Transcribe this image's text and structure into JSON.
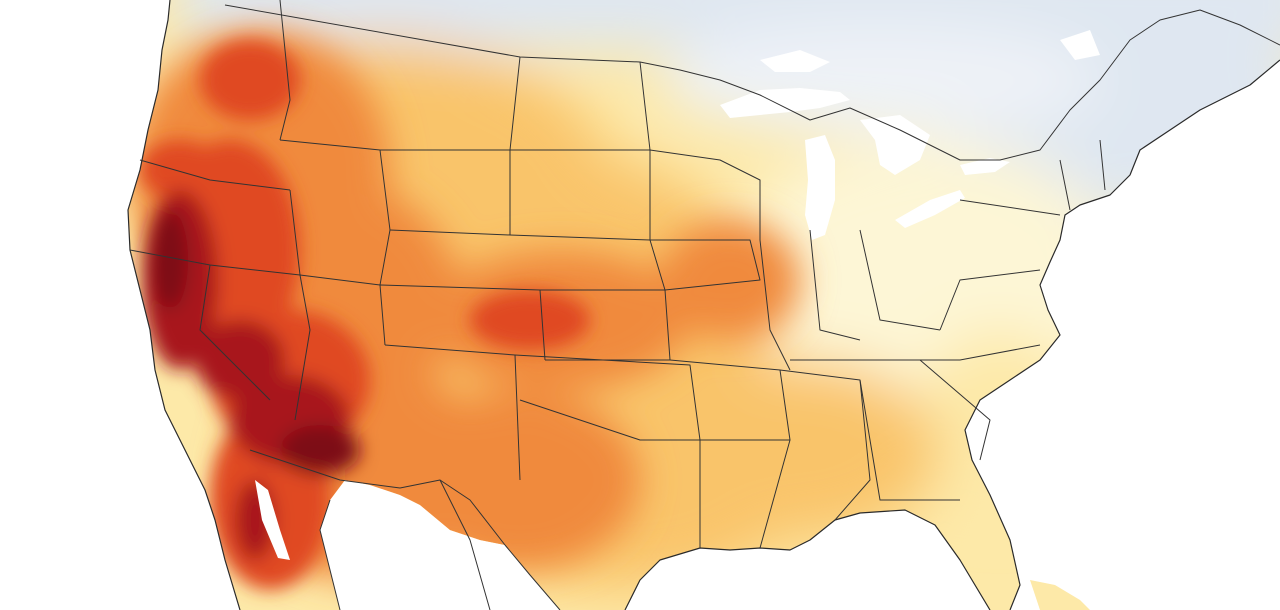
{
  "map": {
    "region": "contiguous-united-states",
    "type": "temperature-anomaly-heatmap",
    "colors": {
      "ocean": "#ffffff",
      "cool_north": "#dfe7f1",
      "cool_light": "#eef2f7",
      "neutral": "#fdf6d6",
      "light_warm": "#fde9a8",
      "warm": "#f9c46b",
      "hot": "#f08a3c",
      "very_hot": "#e04a21",
      "extreme": "#a8141d",
      "extreme_dark": "#7d0a16",
      "borders": "#333333"
    }
  }
}
